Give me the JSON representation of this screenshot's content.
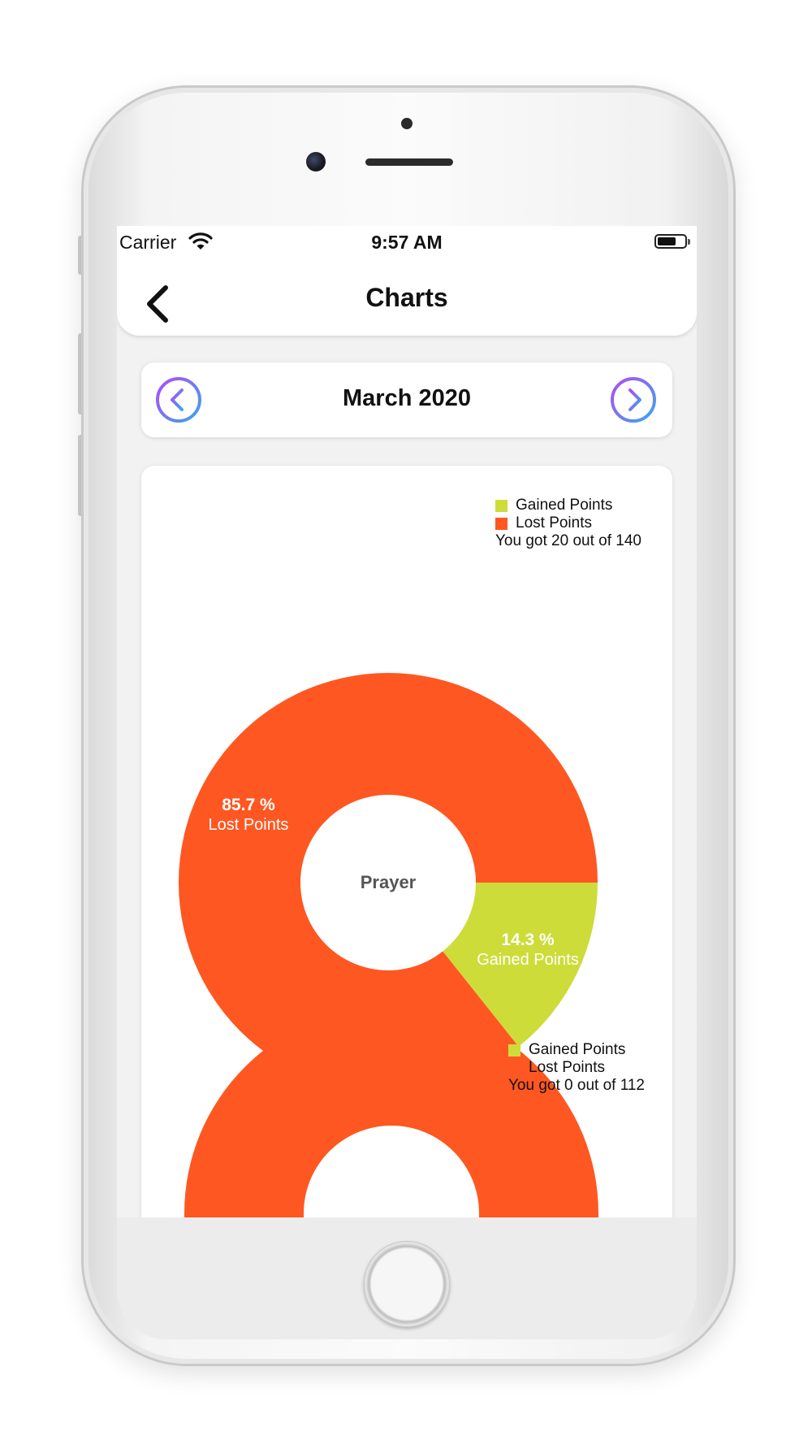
{
  "status_bar": {
    "carrier": "Carrier",
    "time": "9:57 AM"
  },
  "header": {
    "title": "Charts"
  },
  "month_nav": {
    "label": "March 2020"
  },
  "colors": {
    "gained": "#cddc39",
    "lost": "#ff5722",
    "nav_gradient_start": "#a855f7",
    "nav_gradient_end": "#3b9ff0"
  },
  "icons": {
    "back": "chevron-left-icon",
    "prev": "chevron-left-circle-icon",
    "next": "chevron-right-circle-icon",
    "wifi": "wifi-icon",
    "battery": "battery-icon"
  },
  "chart_data": [
    {
      "type": "pie",
      "center_label": "Prayer",
      "legend": [
        "Gained Points",
        "Lost Points"
      ],
      "summary": "You got 20 out of 140",
      "slices": [
        {
          "name": "Gained Points",
          "value": 14.3,
          "label": "14.3 %"
        },
        {
          "name": "Lost Points",
          "value": 85.7,
          "label": "85.7 %"
        }
      ]
    },
    {
      "type": "pie",
      "legend": [
        "Gained Points",
        "Lost Points"
      ],
      "summary": "You got 0 out of 112",
      "slices": [
        {
          "name": "Gained Points",
          "value": 0
        },
        {
          "name": "Lost Points",
          "value": 100
        }
      ]
    }
  ]
}
